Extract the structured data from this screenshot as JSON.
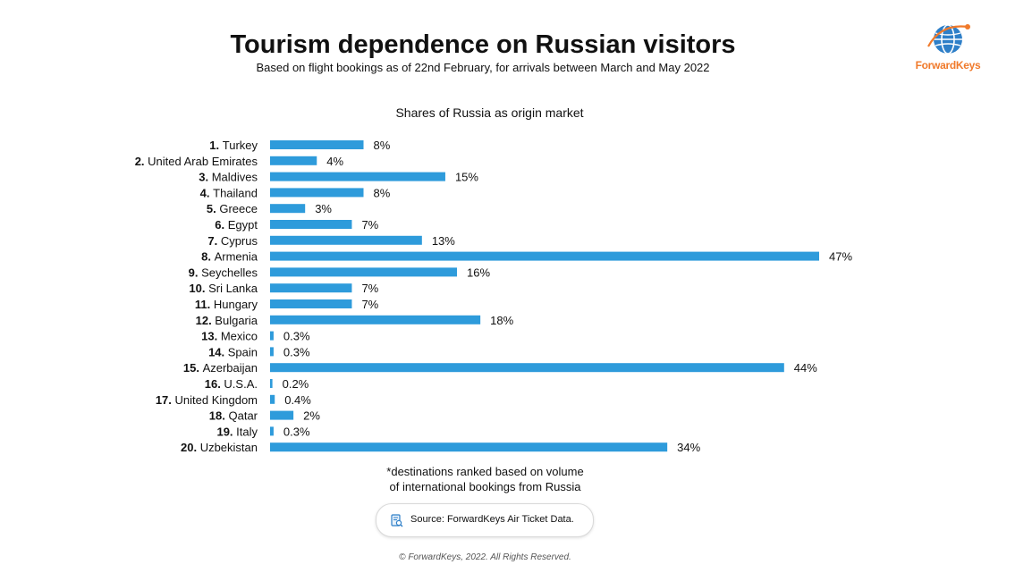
{
  "header": {
    "title": "Tourism dependence on Russian visitors",
    "subtitle": "Based on flight bookings as of 22nd February, for arrivals between March and May 2022"
  },
  "logo": {
    "text": "ForwardKeys",
    "color": "#f07a2b",
    "globe_color": "#2e7fc8"
  },
  "chart_data": {
    "type": "bar",
    "orientation": "horizontal",
    "title": "Shares of Russia as origin market",
    "unit": "%",
    "bar_color": "#2e9bdb",
    "categories": [
      {
        "rank": "1.",
        "name": "Turkey"
      },
      {
        "rank": "2.",
        "name": "United Arab Emirates"
      },
      {
        "rank": "3.",
        "name": "Maldives"
      },
      {
        "rank": "4.",
        "name": "Thailand"
      },
      {
        "rank": "5.",
        "name": "Greece"
      },
      {
        "rank": "6.",
        "name": "Egypt"
      },
      {
        "rank": "7.",
        "name": "Cyprus"
      },
      {
        "rank": "8.",
        "name": "Armenia"
      },
      {
        "rank": "9.",
        "name": "Seychelles"
      },
      {
        "rank": "10.",
        "name": "Sri Lanka"
      },
      {
        "rank": "11.",
        "name": "Hungary"
      },
      {
        "rank": "12.",
        "name": "Bulgaria"
      },
      {
        "rank": "13.",
        "name": "Mexico"
      },
      {
        "rank": "14.",
        "name": "Spain"
      },
      {
        "rank": "15.",
        "name": "Azerbaijan"
      },
      {
        "rank": "16.",
        "name": "U.S.A."
      },
      {
        "rank": "17.",
        "name": "United Kingdom"
      },
      {
        "rank": "18.",
        "name": "Qatar"
      },
      {
        "rank": "19.",
        "name": "Italy"
      },
      {
        "rank": "20.",
        "name": "Uzbekistan"
      }
    ],
    "values": [
      8,
      4,
      15,
      8,
      3,
      7,
      13,
      47,
      16,
      7,
      7,
      18,
      0.3,
      0.3,
      44,
      0.2,
      0.4,
      2,
      0.3,
      34
    ],
    "value_labels": [
      "8%",
      "4%",
      "15%",
      "8%",
      "3%",
      "7%",
      "13%",
      "47%",
      "16%",
      "7%",
      "7%",
      "18%",
      "0.3%",
      "0.3%",
      "44%",
      "0.2%",
      "0.4%",
      "2%",
      "0.3%",
      "34%"
    ],
    "xlim": [
      0,
      47
    ],
    "grid": false,
    "legend": "none"
  },
  "footnote": {
    "line1": "*destinations ranked based on volume",
    "line2": "of international bookings from Russia"
  },
  "source": {
    "text": "Source: ForwardKeys Air Ticket Data.",
    "icon": "document-search-icon"
  },
  "copyright": "© ForwardKeys, 2022. All Rights Reserved."
}
